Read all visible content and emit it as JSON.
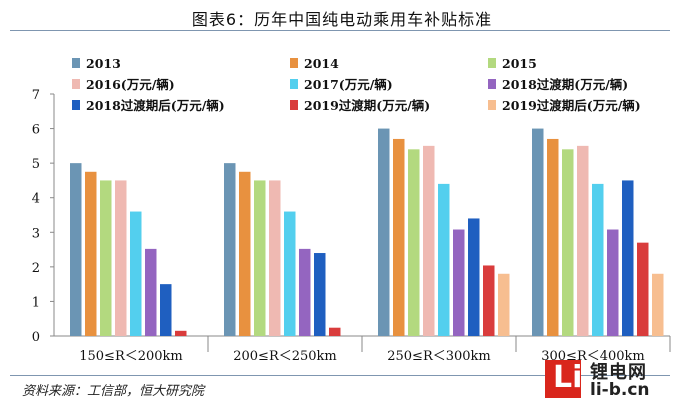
{
  "header": {
    "title": "图表6：历年中国纯电动乘用车补贴标准"
  },
  "footer": {
    "source": "资料来源：工信部，恒大研究院"
  },
  "watermark": {
    "logo_letter": "Li",
    "name_cn": "锂电网",
    "name_en": "li-b.cn"
  },
  "chart_data": {
    "type": "bar",
    "title": "图表6：历年中国纯电动乘用车补贴标准",
    "xlabel": "",
    "ylabel": "",
    "ylim": [
      0,
      7
    ],
    "yticks": [
      0,
      1,
      2,
      3,
      4,
      5,
      6,
      7
    ],
    "grid": false,
    "legend_position": "top",
    "categories": [
      "150≤R＜200km",
      "200≤R＜250km",
      "250≤R＜300km",
      "300≤R＜400km"
    ],
    "series": [
      {
        "name": "2013",
        "color": "#6b95b4",
        "values": [
          5.0,
          5.0,
          6.0,
          6.0
        ]
      },
      {
        "name": "2014",
        "color": "#e8913f",
        "values": [
          4.75,
          4.75,
          5.7,
          5.7
        ]
      },
      {
        "name": "2015",
        "color": "#b3d97f",
        "values": [
          4.5,
          4.5,
          5.4,
          5.4
        ]
      },
      {
        "name": "2016(万元/辆)",
        "color": "#efb9b2",
        "values": [
          4.5,
          4.5,
          5.5,
          5.5
        ]
      },
      {
        "name": "2017(万元/辆)",
        "color": "#53cfee",
        "values": [
          3.6,
          3.6,
          4.4,
          4.4
        ]
      },
      {
        "name": "2018过渡期(万元/辆)",
        "color": "#9465c0",
        "values": [
          2.52,
          2.52,
          3.08,
          3.08
        ]
      },
      {
        "name": "2018过渡期后(万元/辆)",
        "color": "#1f5fc0",
        "values": [
          1.5,
          2.4,
          3.4,
          4.5
        ]
      },
      {
        "name": "2019过渡期(万元/辆)",
        "color": "#d93c3c",
        "values": [
          0.15,
          0.24,
          2.04,
          2.7
        ]
      },
      {
        "name": "2019过渡期后(万元/辆)",
        "color": "#f7be90",
        "values": [
          0,
          0,
          1.8,
          1.8
        ]
      }
    ]
  }
}
